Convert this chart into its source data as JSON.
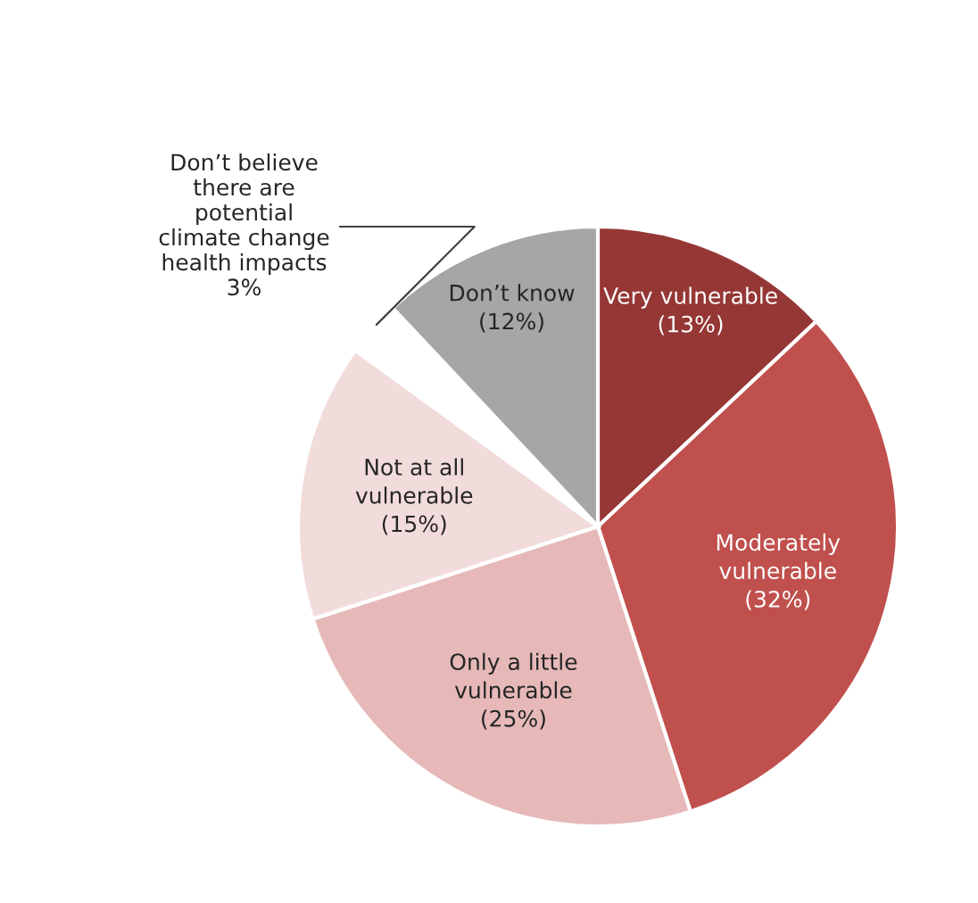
{
  "chart_data": {
    "type": "pie",
    "categories": [
      "Very vulnerable",
      "Moderately\nvulnerable",
      "Only a little\nvulnerable",
      "Not at all\nvulnerable",
      "Don’t believe\nthere are\npotential\nclimate change\nhealth impacts",
      "Don’t know"
    ],
    "values": [
      13,
      32,
      25,
      15,
      3,
      12
    ],
    "value_labels": [
      "(13%)",
      "(32%)",
      "(25%)",
      "(15%)",
      "3%",
      "(12%)"
    ],
    "colors": [
      "#953735",
      "#c0504d",
      "#e6b9b8",
      "#f2dcdb",
      "#ffffff",
      "#a6a6a6"
    ]
  }
}
